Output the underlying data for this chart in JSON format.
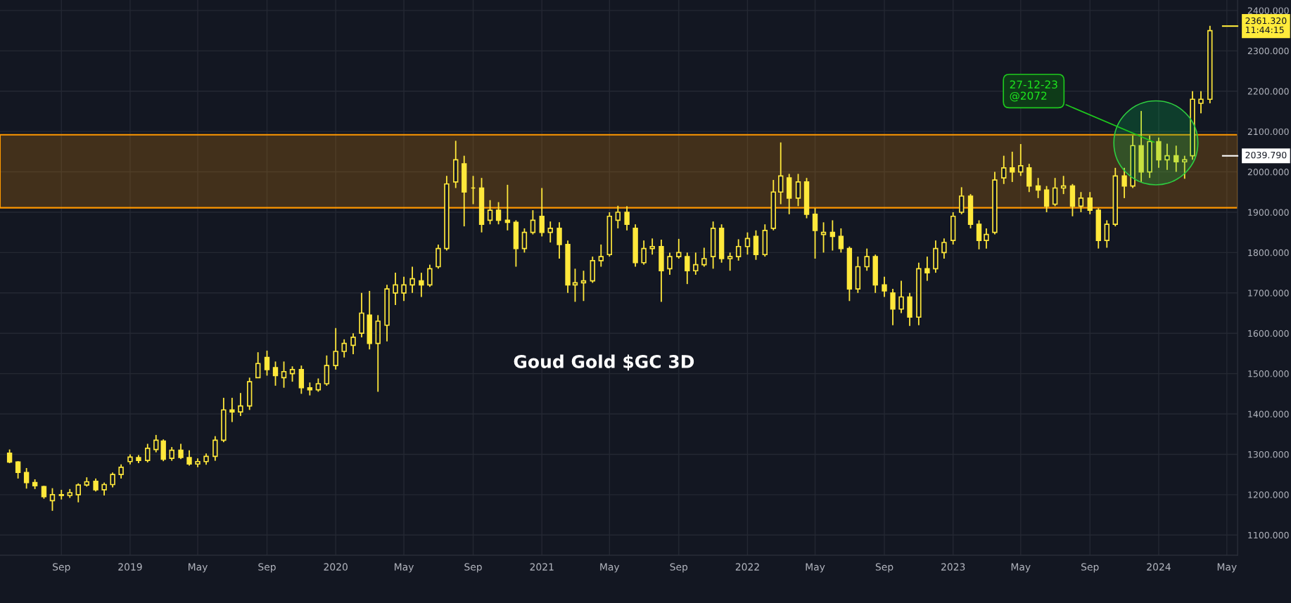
{
  "chart_data": {
    "type": "candlestick",
    "title": "Goud Gold $GC 3D",
    "color": "#ffe83b",
    "x": [
      "2018-06-01",
      "2018-06-16",
      "2018-07-01",
      "2018-07-16",
      "2018-08-01",
      "2018-08-16",
      "2018-09-01",
      "2018-09-16",
      "2018-10-01",
      "2018-10-16",
      "2018-11-01",
      "2018-11-16",
      "2018-12-01",
      "2018-12-16",
      "2019-01-01",
      "2019-01-16",
      "2019-02-01",
      "2019-02-16",
      "2019-03-01",
      "2019-03-16",
      "2019-04-01",
      "2019-04-16",
      "2019-05-01",
      "2019-05-16",
      "2019-06-01",
      "2019-06-16",
      "2019-07-01",
      "2019-07-16",
      "2019-08-01",
      "2019-08-16",
      "2019-09-01",
      "2019-09-16",
      "2019-10-01",
      "2019-10-16",
      "2019-11-01",
      "2019-11-16",
      "2019-12-01",
      "2019-12-16",
      "2020-01-01",
      "2020-01-16",
      "2020-02-01",
      "2020-02-16",
      "2020-03-01",
      "2020-03-16",
      "2020-04-01",
      "2020-04-16",
      "2020-05-01",
      "2020-05-16",
      "2020-06-01",
      "2020-06-16",
      "2020-07-01",
      "2020-07-16",
      "2020-08-01",
      "2020-08-16",
      "2020-09-01",
      "2020-09-16",
      "2020-10-01",
      "2020-10-16",
      "2020-11-01",
      "2020-11-16",
      "2020-12-01",
      "2020-12-16",
      "2021-01-01",
      "2021-01-16",
      "2021-02-01",
      "2021-02-16",
      "2021-03-01",
      "2021-03-16",
      "2021-04-01",
      "2021-04-16",
      "2021-05-01",
      "2021-05-16",
      "2021-06-01",
      "2021-06-16",
      "2021-07-01",
      "2021-07-16",
      "2021-08-01",
      "2021-08-16",
      "2021-09-01",
      "2021-09-16",
      "2021-10-01",
      "2021-10-16",
      "2021-11-01",
      "2021-11-16",
      "2021-12-01",
      "2021-12-16",
      "2022-01-01",
      "2022-01-16",
      "2022-02-01",
      "2022-02-16",
      "2022-03-01",
      "2022-03-16",
      "2022-04-01",
      "2022-04-16",
      "2022-05-01",
      "2022-05-16",
      "2022-06-01",
      "2022-06-16",
      "2022-07-01",
      "2022-07-16",
      "2022-08-01",
      "2022-08-16",
      "2022-09-01",
      "2022-09-16",
      "2022-10-01",
      "2022-10-16",
      "2022-11-01",
      "2022-11-16",
      "2022-12-01",
      "2022-12-16",
      "2023-01-01",
      "2023-01-16",
      "2023-02-01",
      "2023-02-16",
      "2023-03-01",
      "2023-03-16",
      "2023-04-01",
      "2023-04-16",
      "2023-05-01",
      "2023-05-16",
      "2023-06-01",
      "2023-06-16",
      "2023-07-01",
      "2023-07-16",
      "2023-08-01",
      "2023-08-16",
      "2023-09-01",
      "2023-09-16",
      "2023-10-01",
      "2023-10-16",
      "2023-11-01",
      "2023-11-16",
      "2023-12-01",
      "2023-12-16",
      "2024-01-01",
      "2024-01-16",
      "2024-02-01",
      "2024-02-16",
      "2024-03-01",
      "2024-03-16",
      "2024-04-01"
    ],
    "ohlc": [
      [
        1303,
        1312,
        1278,
        1281
      ],
      [
        1281,
        1283,
        1240,
        1255
      ],
      [
        1255,
        1266,
        1215,
        1230
      ],
      [
        1230,
        1238,
        1214,
        1222
      ],
      [
        1220,
        1222,
        1190,
        1195
      ],
      [
        1185,
        1216,
        1160,
        1200
      ],
      [
        1200,
        1212,
        1188,
        1198
      ],
      [
        1198,
        1214,
        1192,
        1205
      ],
      [
        1200,
        1228,
        1181,
        1224
      ],
      [
        1224,
        1243,
        1220,
        1232
      ],
      [
        1233,
        1240,
        1208,
        1212
      ],
      [
        1212,
        1230,
        1198,
        1225
      ],
      [
        1225,
        1255,
        1218,
        1250
      ],
      [
        1250,
        1275,
        1240,
        1268
      ],
      [
        1282,
        1300,
        1275,
        1293
      ],
      [
        1292,
        1298,
        1278,
        1285
      ],
      [
        1285,
        1326,
        1280,
        1315
      ],
      [
        1312,
        1348,
        1305,
        1335
      ],
      [
        1333,
        1337,
        1283,
        1288
      ],
      [
        1290,
        1318,
        1284,
        1310
      ],
      [
        1310,
        1326,
        1288,
        1292
      ],
      [
        1292,
        1310,
        1272,
        1276
      ],
      [
        1276,
        1290,
        1268,
        1282
      ],
      [
        1282,
        1302,
        1274,
        1295
      ],
      [
        1295,
        1345,
        1284,
        1335
      ],
      [
        1335,
        1440,
        1330,
        1410
      ],
      [
        1410,
        1440,
        1380,
        1405
      ],
      [
        1405,
        1452,
        1395,
        1420
      ],
      [
        1420,
        1490,
        1410,
        1480
      ],
      [
        1490,
        1553,
        1490,
        1525
      ],
      [
        1540,
        1557,
        1495,
        1510
      ],
      [
        1515,
        1530,
        1470,
        1495
      ],
      [
        1490,
        1530,
        1465,
        1505
      ],
      [
        1500,
        1518,
        1480,
        1510
      ],
      [
        1510,
        1520,
        1450,
        1465
      ],
      [
        1465,
        1478,
        1446,
        1460
      ],
      [
        1460,
        1488,
        1455,
        1475
      ],
      [
        1475,
        1545,
        1470,
        1520
      ],
      [
        1520,
        1613,
        1510,
        1555
      ],
      [
        1555,
        1585,
        1540,
        1575
      ],
      [
        1570,
        1600,
        1548,
        1590
      ],
      [
        1600,
        1700,
        1590,
        1650
      ],
      [
        1645,
        1705,
        1560,
        1575
      ],
      [
        1575,
        1645,
        1455,
        1630
      ],
      [
        1620,
        1720,
        1580,
        1710
      ],
      [
        1700,
        1750,
        1670,
        1720
      ],
      [
        1700,
        1740,
        1680,
        1720
      ],
      [
        1720,
        1765,
        1700,
        1735
      ],
      [
        1730,
        1750,
        1690,
        1720
      ],
      [
        1720,
        1770,
        1715,
        1760
      ],
      [
        1765,
        1820,
        1760,
        1810
      ],
      [
        1810,
        1990,
        1805,
        1970
      ],
      [
        1975,
        2077,
        1960,
        2030
      ],
      [
        2020,
        2040,
        1865,
        1950
      ],
      [
        1960,
        1990,
        1920,
        1960
      ],
      [
        1960,
        1985,
        1850,
        1870
      ],
      [
        1880,
        1930,
        1870,
        1905
      ],
      [
        1905,
        1925,
        1870,
        1880
      ],
      [
        1880,
        1968,
        1855,
        1875
      ],
      [
        1875,
        1880,
        1765,
        1810
      ],
      [
        1810,
        1860,
        1800,
        1850
      ],
      [
        1850,
        1905,
        1845,
        1880
      ],
      [
        1890,
        1960,
        1840,
        1850
      ],
      [
        1850,
        1877,
        1825,
        1860
      ],
      [
        1860,
        1875,
        1785,
        1820
      ],
      [
        1820,
        1830,
        1700,
        1720
      ],
      [
        1720,
        1760,
        1678,
        1725
      ],
      [
        1725,
        1755,
        1680,
        1730
      ],
      [
        1730,
        1790,
        1725,
        1780
      ],
      [
        1780,
        1820,
        1765,
        1790
      ],
      [
        1795,
        1900,
        1790,
        1890
      ],
      [
        1880,
        1916,
        1860,
        1900
      ],
      [
        1900,
        1915,
        1855,
        1870
      ],
      [
        1860,
        1870,
        1765,
        1775
      ],
      [
        1775,
        1830,
        1770,
        1810
      ],
      [
        1810,
        1835,
        1795,
        1815
      ],
      [
        1815,
        1832,
        1678,
        1755
      ],
      [
        1760,
        1800,
        1745,
        1790
      ],
      [
        1790,
        1834,
        1785,
        1800
      ],
      [
        1790,
        1800,
        1722,
        1755
      ],
      [
        1755,
        1800,
        1745,
        1770
      ],
      [
        1770,
        1812,
        1765,
        1785
      ],
      [
        1790,
        1877,
        1760,
        1860
      ],
      [
        1860,
        1870,
        1775,
        1785
      ],
      [
        1785,
        1800,
        1755,
        1790
      ],
      [
        1790,
        1833,
        1780,
        1815
      ],
      [
        1815,
        1850,
        1795,
        1835
      ],
      [
        1840,
        1855,
        1782,
        1795
      ],
      [
        1795,
        1870,
        1790,
        1855
      ],
      [
        1860,
        1980,
        1855,
        1950
      ],
      [
        1950,
        2073,
        1920,
        1990
      ],
      [
        1985,
        1995,
        1895,
        1935
      ],
      [
        1935,
        1995,
        1915,
        1975
      ],
      [
        1975,
        1985,
        1885,
        1895
      ],
      [
        1895,
        1910,
        1785,
        1855
      ],
      [
        1845,
        1875,
        1800,
        1850
      ],
      [
        1850,
        1880,
        1805,
        1840
      ],
      [
        1840,
        1860,
        1800,
        1810
      ],
      [
        1810,
        1815,
        1680,
        1710
      ],
      [
        1710,
        1790,
        1700,
        1765
      ],
      [
        1765,
        1810,
        1755,
        1790
      ],
      [
        1790,
        1795,
        1700,
        1720
      ],
      [
        1720,
        1740,
        1690,
        1705
      ],
      [
        1700,
        1710,
        1620,
        1660
      ],
      [
        1660,
        1730,
        1650,
        1690
      ],
      [
        1690,
        1700,
        1618,
        1640
      ],
      [
        1640,
        1775,
        1620,
        1760
      ],
      [
        1760,
        1790,
        1730,
        1750
      ],
      [
        1760,
        1830,
        1750,
        1810
      ],
      [
        1800,
        1835,
        1785,
        1825
      ],
      [
        1830,
        1900,
        1820,
        1890
      ],
      [
        1900,
        1962,
        1895,
        1940
      ],
      [
        1940,
        1945,
        1860,
        1870
      ],
      [
        1870,
        1880,
        1808,
        1830
      ],
      [
        1830,
        1860,
        1810,
        1845
      ],
      [
        1850,
        2000,
        1845,
        1980
      ],
      [
        1985,
        2040,
        1970,
        2010
      ],
      [
        2010,
        2050,
        1975,
        2000
      ],
      [
        2000,
        2069,
        1990,
        2015
      ],
      [
        2010,
        2020,
        1950,
        1965
      ],
      [
        1965,
        1985,
        1935,
        1955
      ],
      [
        1955,
        1965,
        1900,
        1915
      ],
      [
        1920,
        1985,
        1915,
        1960
      ],
      [
        1960,
        1990,
        1945,
        1965
      ],
      [
        1965,
        1970,
        1890,
        1915
      ],
      [
        1915,
        1950,
        1900,
        1935
      ],
      [
        1935,
        1950,
        1895,
        1905
      ],
      [
        1905,
        1910,
        1810,
        1830
      ],
      [
        1830,
        1880,
        1812,
        1870
      ],
      [
        1870,
        2010,
        1865,
        1990
      ],
      [
        1990,
        2010,
        1935,
        1965
      ],
      [
        1965,
        2090,
        1960,
        2065
      ],
      [
        2065,
        2151,
        1975,
        2000
      ],
      [
        2000,
        2090,
        1985,
        2075
      ],
      [
        2075,
        2085,
        2010,
        2030
      ],
      [
        2030,
        2070,
        2005,
        2040
      ],
      [
        2040,
        2065,
        2000,
        2025
      ],
      [
        2025,
        2040,
        1983,
        2030
      ],
      [
        2040,
        2200,
        2030,
        2180
      ],
      [
        2170,
        2200,
        2145,
        2180
      ],
      [
        2180,
        2362,
        2170,
        2350
      ]
    ],
    "xlim": [
      "2018-05-15",
      "2024-05-20"
    ],
    "xticks": [
      {
        "value": "2018-09-01",
        "label": "Sep"
      },
      {
        "value": "2019-01-01",
        "label": "2019"
      },
      {
        "value": "2019-05-01",
        "label": "May"
      },
      {
        "value": "2019-09-01",
        "label": "Sep"
      },
      {
        "value": "2020-01-01",
        "label": "2020"
      },
      {
        "value": "2020-05-01",
        "label": "May"
      },
      {
        "value": "2020-09-01",
        "label": "Sep"
      },
      {
        "value": "2021-01-01",
        "label": "2021"
      },
      {
        "value": "2021-05-01",
        "label": "May"
      },
      {
        "value": "2021-09-01",
        "label": "Sep"
      },
      {
        "value": "2022-01-01",
        "label": "2022"
      },
      {
        "value": "2022-05-01",
        "label": "May"
      },
      {
        "value": "2022-09-01",
        "label": "Sep"
      },
      {
        "value": "2023-01-01",
        "label": "2023"
      },
      {
        "value": "2023-05-01",
        "label": "May"
      },
      {
        "value": "2023-09-01",
        "label": "Sep"
      },
      {
        "value": "2024-01-01",
        "label": "2024"
      },
      {
        "value": "2024-05-01",
        "label": "May"
      }
    ],
    "ylim": [
      1050,
      2426
    ],
    "yticks": [
      {
        "value": 1100,
        "label": "1100.000"
      },
      {
        "value": 1200,
        "label": "1200.000"
      },
      {
        "value": 1300,
        "label": "1300.000"
      },
      {
        "value": 1400,
        "label": "1400.000"
      },
      {
        "value": 1500,
        "label": "1500.000"
      },
      {
        "value": 1600,
        "label": "1600.000"
      },
      {
        "value": 1700,
        "label": "1700.000"
      },
      {
        "value": 1800,
        "label": "1800.000"
      },
      {
        "value": 1900,
        "label": "1900.000"
      },
      {
        "value": 2000,
        "label": "2000.000"
      },
      {
        "value": 2100,
        "label": "2100.000"
      },
      {
        "value": 2200,
        "label": "2200.000"
      },
      {
        "value": 2300,
        "label": "2300.000"
      },
      {
        "value": 2400,
        "label": "2400.000"
      }
    ],
    "grid": true,
    "bands": [
      {
        "axis": "y",
        "from": 1911,
        "to": 2092,
        "color": "#ff9800"
      }
    ],
    "ref_lines": [
      {
        "axis": "y",
        "value": 2361.32,
        "label": "2361.320\n11:44:15",
        "color": "#ffeb3b"
      },
      {
        "axis": "y",
        "value": 2039.79,
        "label": "2039.790",
        "color": "#ffffff"
      }
    ],
    "annotations": [
      {
        "text": "27-12-23\n@2072",
        "x": "2023-12-27",
        "y": 2072
      }
    ]
  }
}
